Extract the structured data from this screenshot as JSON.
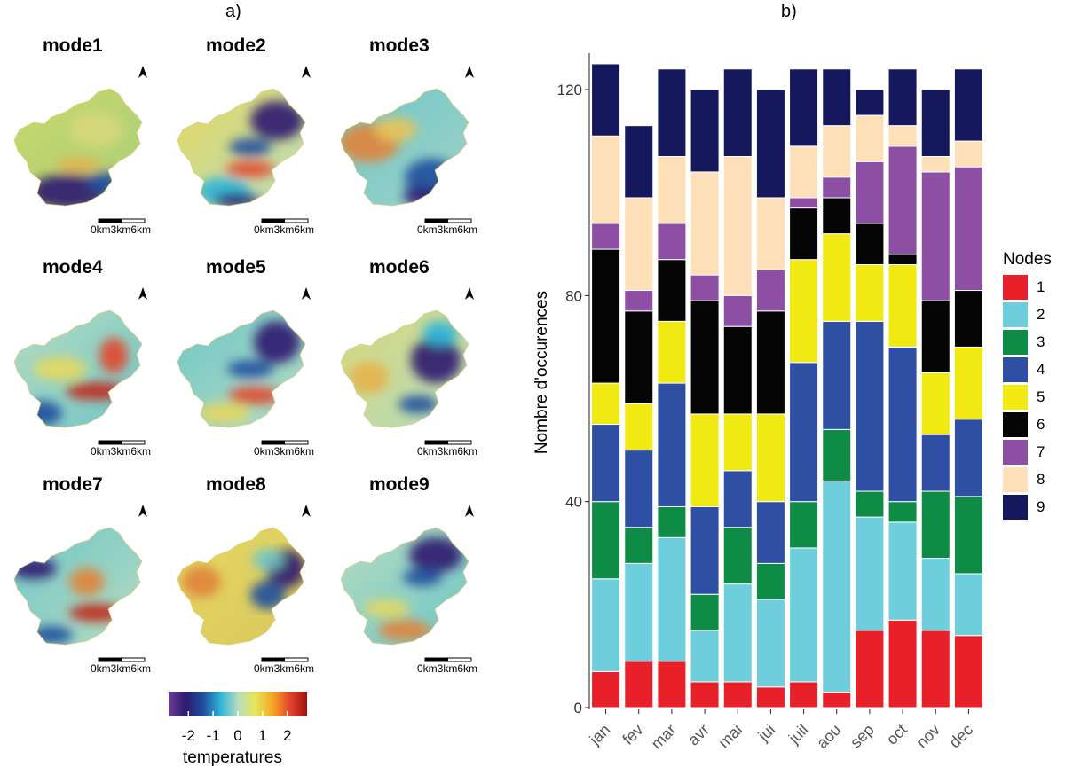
{
  "panel_a_label": "a)",
  "panel_b_label": "b)",
  "maps": [
    {
      "title": "mode1",
      "pattern": "mode1"
    },
    {
      "title": "mode2",
      "pattern": "mode2"
    },
    {
      "title": "mode3",
      "pattern": "mode3"
    },
    {
      "title": "mode4",
      "pattern": "mode4"
    },
    {
      "title": "mode5",
      "pattern": "mode5"
    },
    {
      "title": "mode6",
      "pattern": "mode6"
    },
    {
      "title": "mode7",
      "pattern": "mode7"
    },
    {
      "title": "mode8",
      "pattern": "mode8"
    },
    {
      "title": "mode9",
      "pattern": "mode9"
    }
  ],
  "scalebar_labels": [
    "0km",
    "3km",
    "6km"
  ],
  "north_arrow_icon": "north-arrow-icon",
  "colorbar": {
    "title": "temperatures",
    "ticks": [
      "-2",
      "-1",
      "0",
      "1",
      "2"
    ],
    "tick_values": [
      -2,
      -1,
      0,
      1,
      2
    ],
    "range": [
      -2.8,
      2.8
    ],
    "colors": [
      "#6a3d9a",
      "#2c1b6e",
      "#1f4e9c",
      "#2fb4d8",
      "#b5dcc0",
      "#e6e65a",
      "#f5a623",
      "#e2462e",
      "#a01010"
    ]
  },
  "chart_data": {
    "type": "bar",
    "stacked": true,
    "title": "",
    "xlabel": "",
    "ylabel": "Nombre d'occurences",
    "ylim": [
      0,
      125
    ],
    "yticks": [
      0,
      40,
      80,
      120
    ],
    "ytick_labels": [
      "0",
      "40",
      "80",
      "120"
    ],
    "categories": [
      "jan",
      "fev",
      "mar",
      "avr",
      "mai",
      "jui",
      "juil",
      "aou",
      "sep",
      "oct",
      "nov",
      "dec"
    ],
    "series": [
      {
        "name": "1",
        "color": "#e8202a",
        "values": [
          7,
          9,
          9,
          5,
          5,
          4,
          5,
          3,
          15,
          17,
          15,
          14
        ]
      },
      {
        "name": "2",
        "color": "#6ecedc",
        "values": [
          18,
          19,
          24,
          10,
          19,
          17,
          26,
          41,
          22,
          19,
          14,
          12
        ]
      },
      {
        "name": "3",
        "color": "#0e8b45",
        "values": [
          15,
          7,
          6,
          7,
          11,
          7,
          9,
          10,
          5,
          4,
          13,
          15
        ]
      },
      {
        "name": "4",
        "color": "#2e4fa3",
        "values": [
          15,
          15,
          24,
          17,
          11,
          12,
          27,
          21,
          33,
          30,
          11,
          15
        ]
      },
      {
        "name": "5",
        "color": "#f1e912",
        "values": [
          8,
          9,
          12,
          18,
          11,
          17,
          20,
          17,
          11,
          16,
          12,
          14
        ]
      },
      {
        "name": "6",
        "color": "#050505",
        "values": [
          26,
          18,
          12,
          22,
          17,
          20,
          10,
          7,
          8,
          2,
          14,
          11
        ]
      },
      {
        "name": "7",
        "color": "#8c4fa3",
        "values": [
          5,
          4,
          7,
          5,
          6,
          8,
          2,
          4,
          12,
          21,
          25,
          24
        ]
      },
      {
        "name": "8",
        "color": "#fde0b7",
        "values": [
          17,
          18,
          13,
          20,
          27,
          14,
          10,
          10,
          9,
          4,
          3,
          5
        ]
      },
      {
        "name": "9",
        "color": "#15185c",
        "values": [
          14,
          14,
          17,
          16,
          17,
          21,
          15,
          11,
          5,
          11,
          13,
          14
        ]
      }
    ],
    "legend_title": "Nodes",
    "legend_position": "right"
  }
}
